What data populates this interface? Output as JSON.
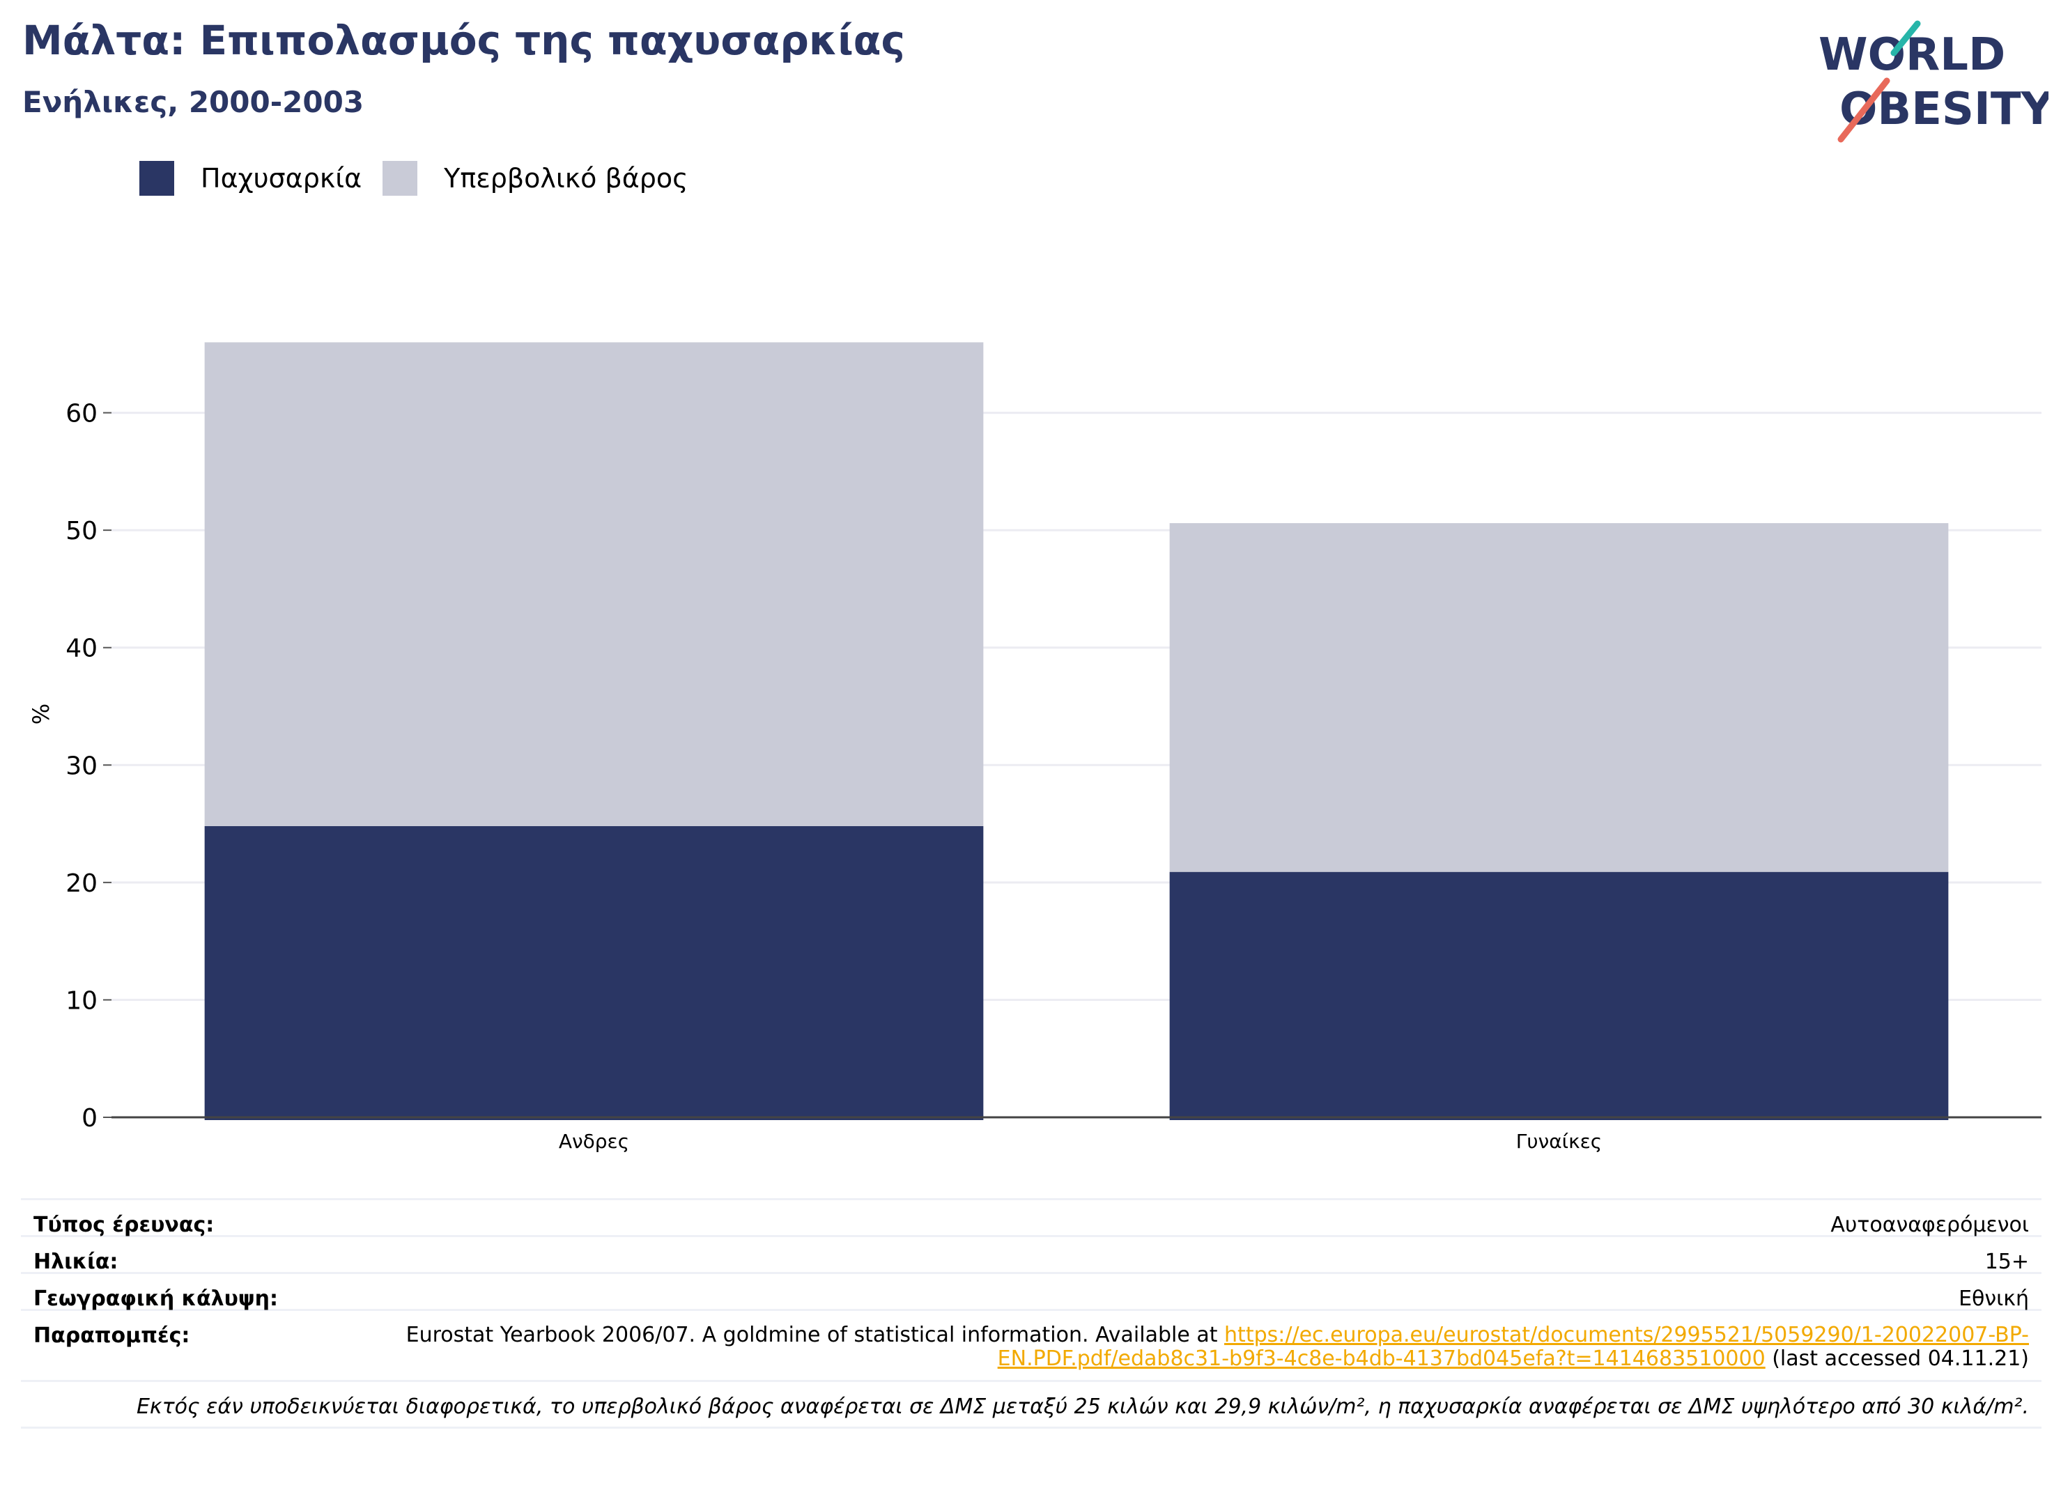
{
  "header": {
    "title": "Μάλτα: Επιπολασμός της παχυσαρκίας",
    "subtitle": "Ενήλικες, 2000-2003",
    "logo_line1": "WORLD",
    "logo_line2": "OBESITY"
  },
  "legend": [
    {
      "label": "Παχυσαρκία",
      "color": "#2a3664"
    },
    {
      "label": "Υπερβολικό βάρος",
      "color": "#c9cbd7"
    }
  ],
  "chart_data": {
    "type": "bar",
    "stacked": true,
    "categories": [
      "Ανδρες",
      "Γυναίκες"
    ],
    "series": [
      {
        "name": "Παχυσαρκία",
        "values": [
          24.8,
          20.9
        ],
        "color": "#2a3664"
      },
      {
        "name": "Υπερβολικό βάρος",
        "values": [
          41.2,
          29.7
        ],
        "color": "#c9cbd7"
      }
    ],
    "ylabel": "%",
    "ylim": [
      0,
      70
    ],
    "yticks": [
      0,
      10,
      20,
      30,
      40,
      50,
      60
    ],
    "grid": true,
    "legend_position": "top-left"
  },
  "info": {
    "survey_type_label": "Τύπος έρευνας:",
    "survey_type_value": "Αυτοαναφερόμενοι",
    "age_label": "Ηλικία:",
    "age_value": "15+",
    "coverage_label": "Γεωγραφική κάλυψη:",
    "coverage_value": "Εθνική",
    "refs_label": "Παραπομπές:",
    "refs_text": "Eurostat Yearbook 2006/07. A goldmine of statistical information. Available at ",
    "refs_link": "https://ec.europa.eu/eurostat/documents/2995521/5059290/1-20022007-BP-EN.PDF.pdf/edab8c31-b9f3-4c8e-b4db-4137bd045efa?t=1414683510000",
    "refs_suffix": " (last accessed 04.11.21)",
    "footnote": "Εκτός εάν υποδεικνύεται διαφορετικά, το υπερβολικό βάρος αναφέρεται σε ΔΜΣ μεταξύ 25 κιλών και 29,9 κιλών/m², η παχυσαρκία αναφέρεται σε ΔΜΣ υψηλότερο από 30 κιλά/m²."
  }
}
